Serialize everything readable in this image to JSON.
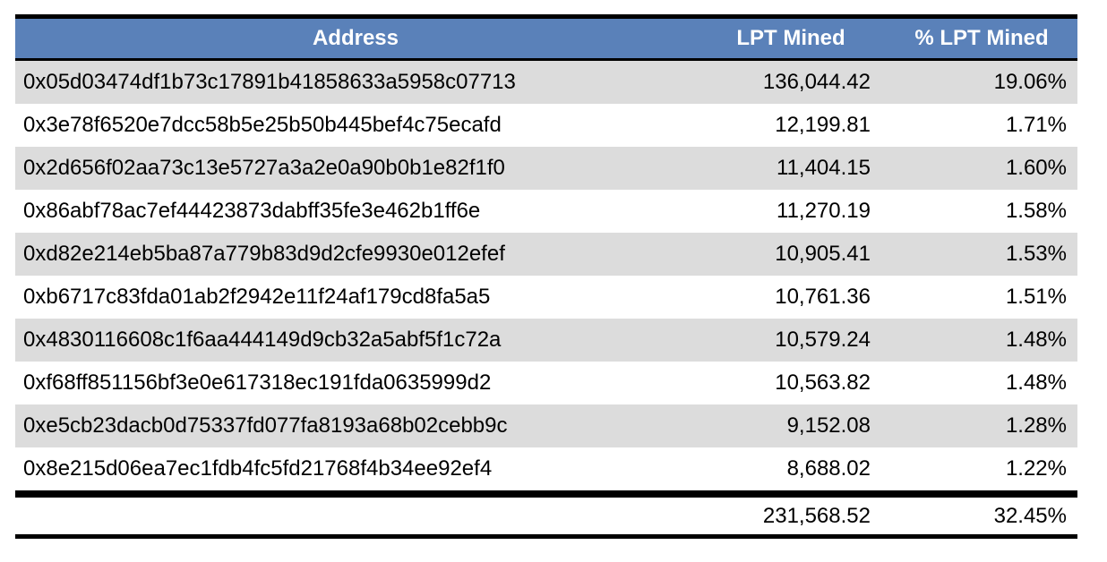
{
  "chart_data": {
    "type": "table",
    "columns": [
      "Address",
      "LPT Mined",
      "% LPT Mined"
    ],
    "rows": [
      [
        "0x05d03474df1b73c17891b41858633a5958c07713",
        "136,044.42",
        "19.06%"
      ],
      [
        "0x3e78f6520e7dcc58b5e25b50b445bef4c75ecafd",
        "12,199.81",
        "1.71%"
      ],
      [
        "0x2d656f02aa73c13e5727a3a2e0a90b0b1e82f1f0",
        "11,404.15",
        "1.60%"
      ],
      [
        "0x86abf78ac7ef44423873dabff35fe3e462b1ff6e",
        "11,270.19",
        "1.58%"
      ],
      [
        "0xd82e214eb5ba87a779b83d9d2cfe9930e012efef",
        "10,905.41",
        "1.53%"
      ],
      [
        "0xb6717c83fda01ab2f2942e11f24af179cd8fa5a5",
        "10,761.36",
        "1.51%"
      ],
      [
        "0x4830116608c1f6aa444149d9cb32a5abf5f1c72a",
        "10,579.24",
        "1.48%"
      ],
      [
        "0xf68ff851156bf3e0e617318ec191fda0635999d2",
        "10,563.82",
        "1.48%"
      ],
      [
        "0xe5cb23dacb0d75337fd077fa8193a68b02cebb9c",
        "9,152.08",
        "1.28%"
      ],
      [
        "0x8e215d06ea7ec1fdb4fc5fd21768f4b34ee92ef4",
        "8,688.02",
        "1.22%"
      ]
    ],
    "totals": [
      "",
      "231,568.52",
      "32.45%"
    ],
    "layout_hints": {
      "striped_rows": true,
      "stripe_start": "first-data-row",
      "numeric_alignment": "right",
      "header_alignment": "center"
    }
  },
  "style": {
    "header_bg": "#5A81B9",
    "header_text": "#FFFFFF",
    "stripe_row_bg": "#DCDCDC",
    "plain_row_bg": "#FFFFFF",
    "border_color": "#000000",
    "body_text": "#000000"
  }
}
